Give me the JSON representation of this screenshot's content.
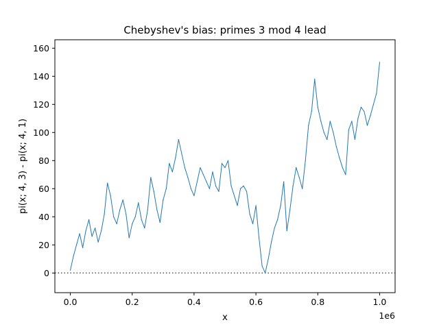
{
  "chart_data": {
    "type": "line",
    "title": "Chebyshev's bias: primes 3 mod 4 lead",
    "xlabel": "x",
    "ylabel": "pi(x; 4, 3) - pi(x; 4, 1)",
    "x_offset_label": "1e6",
    "xlim": [
      -50000,
      1050000
    ],
    "ylim": [
      -14,
      166
    ],
    "x_ticks": [
      0,
      200000,
      400000,
      600000,
      800000,
      1000000
    ],
    "x_tick_labels": [
      "0.0",
      "0.2",
      "0.4",
      "0.6",
      "0.8",
      "1.0"
    ],
    "y_ticks": [
      0,
      20,
      40,
      60,
      80,
      100,
      120,
      140,
      160
    ],
    "y_tick_labels": [
      "0",
      "20",
      "40",
      "60",
      "80",
      "100",
      "120",
      "140",
      "160"
    ],
    "grid": false,
    "reference_line": {
      "y": 0,
      "style": "dotted",
      "color": "#555555"
    },
    "series": [
      {
        "color": "#1f77b4",
        "x": [
          0,
          10000,
          20000,
          30000,
          40000,
          50000,
          60000,
          70000,
          80000,
          90000,
          100000,
          110000,
          120000,
          130000,
          140000,
          150000,
          160000,
          170000,
          180000,
          190000,
          200000,
          210000,
          220000,
          230000,
          240000,
          250000,
          260000,
          270000,
          280000,
          290000,
          300000,
          310000,
          320000,
          330000,
          340000,
          350000,
          360000,
          370000,
          380000,
          390000,
          400000,
          410000,
          420000,
          430000,
          440000,
          450000,
          460000,
          470000,
          480000,
          490000,
          500000,
          510000,
          520000,
          530000,
          540000,
          550000,
          560000,
          570000,
          580000,
          590000,
          600000,
          610000,
          620000,
          630000,
          640000,
          650000,
          660000,
          670000,
          680000,
          690000,
          700000,
          710000,
          720000,
          730000,
          740000,
          750000,
          760000,
          770000,
          780000,
          790000,
          800000,
          810000,
          820000,
          830000,
          840000,
          850000,
          860000,
          870000,
          880000,
          890000,
          900000,
          910000,
          920000,
          930000,
          940000,
          950000,
          960000,
          970000,
          980000,
          990000,
          1000000
        ],
        "y": [
          2,
          12,
          20,
          28,
          18,
          30,
          38,
          26,
          32,
          22,
          30,
          42,
          64,
          55,
          40,
          35,
          45,
          52,
          42,
          25,
          35,
          40,
          50,
          38,
          32,
          45,
          68,
          58,
          45,
          36,
          52,
          60,
          78,
          72,
          82,
          95,
          85,
          75,
          68,
          60,
          55,
          65,
          75,
          70,
          65,
          60,
          72,
          62,
          58,
          78,
          75,
          80,
          62,
          55,
          48,
          60,
          62,
          58,
          42,
          35,
          48,
          25,
          5,
          0,
          10,
          22,
          32,
          38,
          48,
          65,
          30,
          45,
          62,
          75,
          68,
          60,
          80,
          105,
          115,
          138,
          118,
          108,
          100,
          95,
          108,
          100,
          90,
          82,
          75,
          70,
          102,
          108,
          95,
          110,
          118,
          115,
          105,
          112,
          120,
          128,
          150
        ]
      }
    ]
  }
}
